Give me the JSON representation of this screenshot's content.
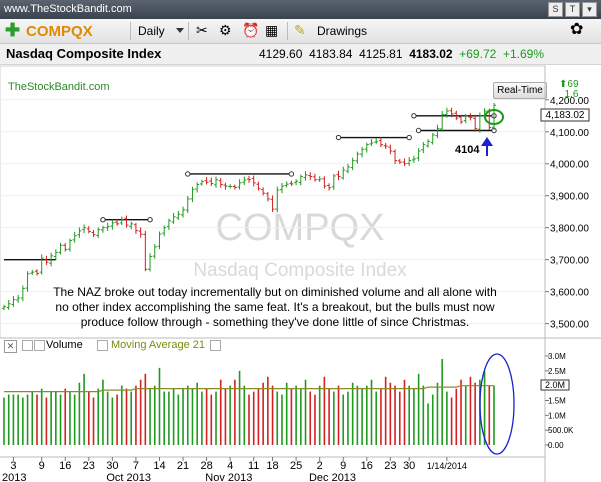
{
  "window": {
    "site": "www.TheStockBandit.com",
    "btn_s": "S",
    "btn_t": "T",
    "btn_c": "▾"
  },
  "toolbar": {
    "symbol": "COMPQX",
    "period": "Daily",
    "drawings_label": "Drawings"
  },
  "quote": {
    "name": "Nasdaq Composite Index",
    "open": "4129.60",
    "high": "4183.84",
    "low": "4125.81",
    "last": "4183.02",
    "change": "+69.72",
    "pct": "+1.69%",
    "realtime_label": "Real-Time",
    "spark_top": "69",
    "spark_bottom": "1.6"
  },
  "price_pane": {
    "watermark": "TheStockBandit.com",
    "bg_symbol": "COMPQX",
    "bg_name": "Nasdaq Composite Index",
    "last_label": "4,183.02",
    "annotation_4104": "4104",
    "commentary": [
      "The NAZ broke out today incrementally but on diminished volume and all alone with",
      "no other index accomplishing the same feat. It's a breakout, but the bulls must now",
      "produce follow through - something they've done little of since Christmas."
    ]
  },
  "volume_pane": {
    "label": "Volume",
    "ma_label": "Moving Average 21",
    "last_label": "2.0M"
  },
  "colors": {
    "up": "#1f9a1f",
    "down": "#d42020",
    "ma": "#8b8b2a",
    "accent": "#e08a00",
    "circle_green": "#1a9a1a",
    "circle_blue": "#1a24cc"
  },
  "chart_data": [
    {
      "type": "line",
      "series": [
        {
          "values": [
            3553,
            3562,
            3575,
            3580,
            3610,
            3656,
            3661,
            3657,
            3705,
            3692,
            3712,
            3723,
            3745,
            3732,
            3760,
            3775,
            3790,
            3800,
            3788,
            3778,
            3794,
            3800,
            3804,
            3815,
            3812,
            3826,
            3808,
            3812,
            3791,
            3780,
            3670,
            3710,
            3740,
            3780,
            3800,
            3822,
            3834,
            3842,
            3856,
            3890,
            3920,
            3935,
            3944,
            3942,
            3938,
            3950,
            3935,
            3930,
            3929,
            3926,
            3940,
            3949,
            3950,
            3940,
            3922,
            3908,
            3890,
            3858,
            3918,
            3930,
            3936,
            3937,
            3945,
            3960,
            3965,
            3960,
            3950,
            3952,
            3930,
            3925,
            3962,
            3960,
            3980,
            3990,
            4010,
            4030,
            4045,
            4060,
            4065,
            4069,
            4060,
            4055,
            4040,
            4010,
            4005,
            4000,
            4010,
            4015,
            4040,
            4060,
            4070,
            4090,
            4110,
            4154,
            4165,
            4156,
            4143,
            4131,
            4150,
            4145,
            4110,
            4150,
            4165,
            4113,
            4183
          ]
        }
      ],
      "x_tick_labels": [
        "3",
        "9",
        "16",
        "23",
        "30",
        "7",
        "14",
        "21",
        "28",
        "4",
        "11",
        "18",
        "25",
        "2",
        "9",
        "16",
        "23",
        "30",
        "1/14/2014"
      ],
      "x_month_labels": [
        "2013",
        "Oct 2013",
        "Nov 2013",
        "Dec 2013"
      ],
      "y_tick_labels": [
        "3,500.00",
        "3,600.00",
        "3,700.00",
        "3,800.00",
        "3,900.00",
        "4,000.00",
        "4,100.00",
        "4,200.00"
      ],
      "ylim": [
        3480,
        4215
      ],
      "levels": [
        3700,
        3825,
        3968,
        4082,
        4150,
        4104
      ]
    },
    {
      "type": "bar",
      "series": [
        {
          "name": "Volume",
          "values": [
            1.6,
            1.7,
            1.7,
            1.7,
            1.6,
            1.7,
            1.8,
            1.7,
            1.9,
            1.6,
            1.8,
            1.8,
            1.7,
            1.9,
            1.8,
            1.7,
            2.1,
            2.4,
            1.8,
            1.6,
            1.9,
            2.2,
            1.8,
            1.6,
            1.7,
            2.0,
            1.9,
            1.8,
            2.0,
            2.2,
            2.4,
            1.9,
            2.0,
            2.6,
            1.8,
            1.8,
            1.9,
            1.7,
            1.9,
            2.0,
            1.9,
            2.1,
            1.8,
            1.9,
            1.7,
            1.8,
            2.2,
            1.9,
            2.0,
            2.2,
            2.5,
            2.0,
            1.7,
            1.8,
            1.9,
            2.1,
            2.3,
            2.0,
            1.8,
            1.7,
            2.1,
            1.9,
            2.0,
            1.9,
            2.2,
            1.8,
            1.7,
            2.0,
            2.3,
            1.9,
            1.8,
            2.0,
            1.7,
            1.8,
            2.1,
            2.0,
            1.9,
            2.0,
            2.2,
            1.8,
            1.9,
            2.3,
            2.1,
            2.0,
            1.8,
            2.2,
            2.0,
            1.9,
            2.4,
            2.0,
            1.4,
            1.7,
            2.1,
            2.9,
            1.8,
            1.6,
            1.9,
            2.2,
            2.0,
            2.3,
            2.1,
            2.2,
            2.5,
            2.0,
            2.0
          ]
        },
        {
          "name": "Moving Average 21",
          "values": [
            1.8,
            1.8,
            1.8,
            1.8,
            1.8,
            1.8,
            1.8,
            1.8,
            1.8,
            1.8,
            1.8,
            1.8,
            1.8,
            1.8,
            1.8,
            1.8,
            1.8,
            1.8,
            1.8,
            1.8,
            1.8,
            1.85,
            1.85,
            1.85,
            1.85,
            1.85,
            1.85,
            1.85,
            1.9,
            1.9,
            1.9,
            1.9,
            1.9,
            1.9,
            1.9,
            1.9,
            1.9,
            1.9,
            1.9,
            1.9,
            1.9,
            1.9,
            1.9,
            1.9,
            1.9,
            1.9,
            1.9,
            1.9,
            1.9,
            1.9,
            1.9,
            1.9,
            1.9,
            1.9,
            1.9,
            1.9,
            1.9,
            1.9,
            1.9,
            1.9,
            1.9,
            1.9,
            1.9,
            1.9,
            1.9,
            1.9,
            1.9,
            1.9,
            1.9,
            1.9,
            1.9,
            1.9,
            1.9,
            1.9,
            1.9,
            1.9,
            1.9,
            1.9,
            1.9,
            1.9,
            1.9,
            1.9,
            1.9,
            1.9,
            1.9,
            1.9,
            1.9,
            1.9,
            1.9,
            1.9,
            1.95,
            1.95,
            1.95,
            1.95,
            1.95,
            1.95,
            1.95,
            2.0,
            2.0,
            2.0,
            2.0,
            2.0,
            2.0,
            2.0,
            2.0
          ]
        }
      ],
      "y_tick_labels": [
        "0.00",
        "500.0K",
        "1.0M",
        "1.5M",
        "2.0M",
        "2.5M",
        "3.0M"
      ],
      "ylim": [
        0,
        3.0
      ]
    }
  ]
}
